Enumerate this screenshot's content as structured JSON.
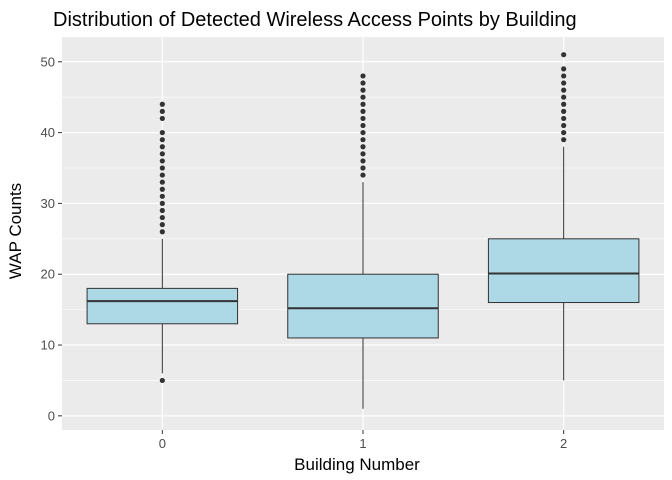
{
  "chart_data": {
    "type": "box",
    "title": "Distribution of Detected Wireless Access Points by Building",
    "xlabel": "Building Number",
    "ylabel": "WAP Counts",
    "categories": [
      "0",
      "1",
      "2"
    ],
    "ylim": [
      -2,
      53.5
    ],
    "yticks": [
      0,
      10,
      20,
      30,
      40,
      50
    ],
    "grid": true,
    "boxes": [
      {
        "category": "0",
        "whisker_low": 6,
        "q1": 13,
        "median": 16.2,
        "q3": 18,
        "whisker_high": 25,
        "outliers": [
          5,
          26,
          27,
          28,
          29,
          30,
          31,
          32,
          33,
          34,
          35,
          36,
          37,
          38,
          39,
          40,
          42,
          43,
          44
        ]
      },
      {
        "category": "1",
        "whisker_low": 1,
        "q1": 11,
        "median": 15.2,
        "q3": 20,
        "whisker_high": 33,
        "outliers": [
          34,
          35,
          36,
          37,
          38,
          39,
          40,
          41,
          42,
          43,
          44,
          45,
          46,
          47,
          48
        ]
      },
      {
        "category": "2",
        "whisker_low": 5,
        "q1": 16,
        "median": 20.1,
        "q3": 25,
        "whisker_high": 38,
        "outliers": [
          39,
          40,
          41,
          42,
          43,
          44,
          45,
          46,
          47,
          48,
          49,
          51
        ]
      }
    ],
    "colors": {
      "box_fill": "#ADD8E6",
      "box_line": "#333333",
      "panel": "#EBEBEB",
      "grid": "#FFFFFF",
      "tick": "#333333",
      "point": "#333333"
    }
  }
}
